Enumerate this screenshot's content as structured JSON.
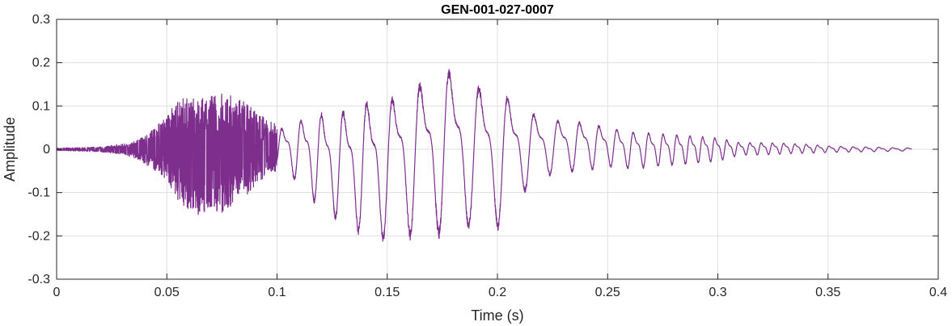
{
  "chart_data": {
    "type": "line",
    "title": "GEN-001-027-0007",
    "xlabel": "Time (s)",
    "ylabel": "Amplitude",
    "xlim": [
      0,
      0.4
    ],
    "ylim": [
      -0.3,
      0.3
    ],
    "xticks": [
      0,
      0.05,
      0.1,
      0.15,
      0.2,
      0.25,
      0.3,
      0.35,
      0.4
    ],
    "xtick_labels": [
      "0",
      "0.05",
      "0.1",
      "0.15",
      "0.2",
      "0.25",
      "0.3",
      "0.35",
      "0.4"
    ],
    "yticks": [
      -0.3,
      -0.2,
      -0.1,
      0,
      0.1,
      0.2,
      0.3
    ],
    "ytick_labels": [
      "-0.3",
      "-0.2",
      "-0.1",
      "0",
      "0.1",
      "0.2",
      "0.3"
    ],
    "grid": true,
    "line_color": "#7e2f8e",
    "duration": 0.388,
    "envelope": {
      "t": [
        0,
        0.01,
        0.02,
        0.03,
        0.035,
        0.04,
        0.045,
        0.05,
        0.055,
        0.06,
        0.065,
        0.07,
        0.075,
        0.08,
        0.085,
        0.09,
        0.095,
        0.1,
        0.105,
        0.11,
        0.115,
        0.12,
        0.125,
        0.13,
        0.135,
        0.14,
        0.145,
        0.15,
        0.155,
        0.16,
        0.165,
        0.17,
        0.175,
        0.18,
        0.185,
        0.19,
        0.195,
        0.2,
        0.205,
        0.21,
        0.22,
        0.23,
        0.24,
        0.25,
        0.26,
        0.27,
        0.28,
        0.29,
        0.3,
        0.31,
        0.32,
        0.33,
        0.34,
        0.35,
        0.36,
        0.37,
        0.38,
        0.388
      ],
      "pos": [
        0.003,
        0.004,
        0.006,
        0.012,
        0.018,
        0.03,
        0.055,
        0.075,
        0.12,
        0.12,
        0.12,
        0.13,
        0.14,
        0.12,
        0.11,
        0.09,
        0.07,
        0.06,
        0.07,
        0.09,
        0.11,
        0.12,
        0.12,
        0.13,
        0.14,
        0.16,
        0.18,
        0.16,
        0.18,
        0.2,
        0.21,
        0.22,
        0.26,
        0.23,
        0.22,
        0.2,
        0.19,
        0.18,
        0.17,
        0.14,
        0.09,
        0.085,
        0.08,
        0.065,
        0.055,
        0.05,
        0.045,
        0.04,
        0.035,
        0.02,
        0.02,
        0.018,
        0.015,
        0.01,
        0.008,
        0.007,
        0.005,
        0.004
      ],
      "neg": [
        -0.003,
        -0.004,
        -0.006,
        -0.012,
        -0.02,
        -0.035,
        -0.05,
        -0.07,
        -0.12,
        -0.14,
        -0.155,
        -0.14,
        -0.15,
        -0.13,
        -0.11,
        -0.09,
        -0.06,
        -0.05,
        -0.06,
        -0.09,
        -0.12,
        -0.15,
        -0.17,
        -0.18,
        -0.2,
        -0.22,
        -0.24,
        -0.22,
        -0.2,
        -0.22,
        -0.23,
        -0.22,
        -0.22,
        -0.21,
        -0.2,
        -0.2,
        -0.19,
        -0.2,
        -0.18,
        -0.12,
        -0.07,
        -0.06,
        -0.055,
        -0.045,
        -0.05,
        -0.045,
        -0.04,
        -0.035,
        -0.03,
        -0.015,
        -0.015,
        -0.012,
        -0.01,
        -0.008,
        -0.007,
        -0.006,
        -0.005,
        -0.004
      ]
    }
  }
}
